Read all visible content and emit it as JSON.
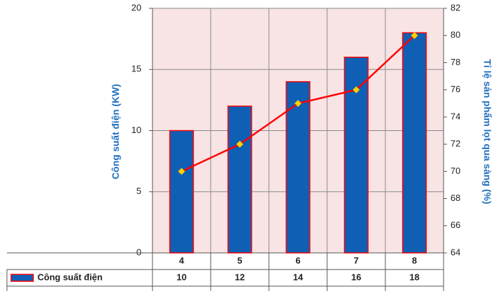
{
  "chart_data": {
    "type": "bar-line",
    "categories": [
      "4",
      "5",
      "6",
      "7",
      "8"
    ],
    "series": [
      {
        "name": "Công suất điện",
        "type": "bar",
        "color": "#0f5fb5",
        "border": "#ff0000",
        "values": [
          10,
          12,
          14,
          16,
          18
        ]
      },
      {
        "type": "line",
        "axis": "y2",
        "color": "#ff0000",
        "marker_color": "#ffd000",
        "values": [
          70,
          72,
          75,
          76,
          80
        ]
      }
    ],
    "ylabel": "Công suất điện (KW)",
    "y2label": "Tỉ lệ sản phẩm lọt qua sàng (%)",
    "ylim": [
      0,
      20
    ],
    "yticks": [
      0,
      5,
      10,
      15,
      20
    ],
    "y2lim": [
      64,
      82
    ],
    "y2ticks": [
      64,
      66,
      68,
      70,
      72,
      74,
      76,
      78,
      80,
      82
    ],
    "grid": true
  }
}
